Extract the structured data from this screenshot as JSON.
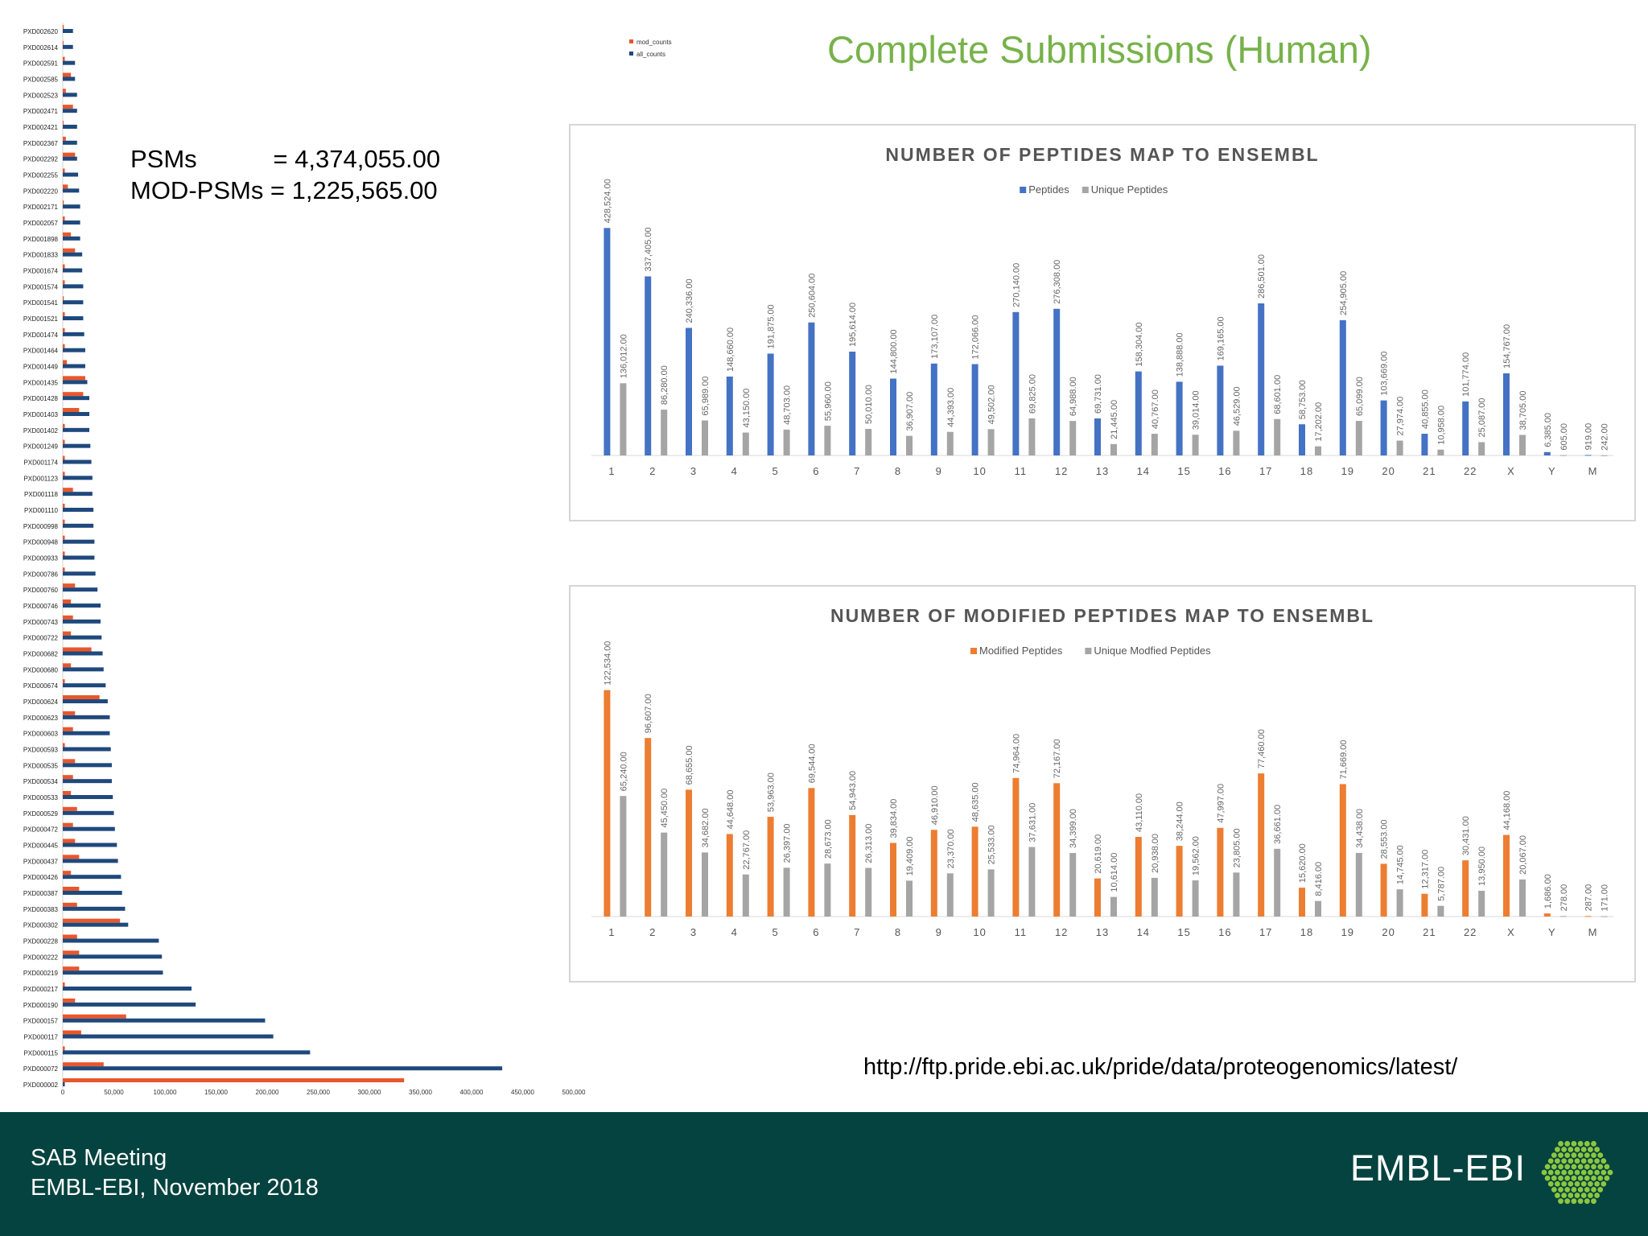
{
  "slide": {
    "title": "Complete Submissions (Human)",
    "url": "http://ftp.pride.ebi.ac.uk/pride/data/proteogenomics/latest/"
  },
  "stats": {
    "psms": "PSMs           = 4,374,055.00",
    "mod_psms": "MOD-PSMs = 1,225,565.00"
  },
  "footer": {
    "line1": "SAB Meeting",
    "line2": "EMBL-EBI, November 2018",
    "logo": "EMBL-EBI"
  },
  "hbar": {
    "legend": [
      "mod_counts",
      "all_counts"
    ]
  },
  "colors": {
    "title_green": "#77b24a",
    "footer_bg": "#04433f",
    "blue": "#4472c4",
    "gray": "#a5a5a5",
    "orange": "#ed7d31",
    "navy": "#1f497d",
    "red": "#e8572c",
    "logo_green": "#8dc63f"
  },
  "chart_data": [
    {
      "type": "bar",
      "orientation": "horizontal",
      "categories": [
        "PXD002620",
        "PXD002614",
        "PXD002591",
        "PXD002585",
        "PXD002523",
        "PXD002471",
        "PXD002421",
        "PXD002367",
        "PXD002292",
        "PXD002255",
        "PXD002220",
        "PXD002171",
        "PXD002057",
        "PXD001898",
        "PXD001833",
        "PXD001674",
        "PXD001574",
        "PXD001541",
        "PXD001521",
        "PXD001474",
        "PXD001464",
        "PXD001449",
        "PXD001435",
        "PXD001428",
        "PXD001403",
        "PXD001402",
        "PXD001249",
        "PXD001174",
        "PXD001123",
        "PXD001118",
        "PXD001110",
        "PXD000998",
        "PXD000948",
        "PXD000933",
        "PXD000786",
        "PXD000760",
        "PXD000746",
        "PXD000743",
        "PXD000722",
        "PXD000682",
        "PXD000680",
        "PXD000674",
        "PXD000624",
        "PXD000623",
        "PXD000603",
        "PXD000593",
        "PXD000535",
        "PXD000534",
        "PXD000533",
        "PXD000529",
        "PXD000472",
        "PXD000445",
        "PXD000437",
        "PXD000426",
        "PXD000387",
        "PXD000383",
        "PXD000302",
        "PXD000228",
        "PXD000222",
        "PXD000219",
        "PXD000217",
        "PXD000190",
        "PXD000157",
        "PXD000117",
        "PXD000115",
        "PXD000072",
        "PXD000002"
      ],
      "series": [
        {
          "name": "mod_counts",
          "values": [
            1000,
            500,
            2000,
            8000,
            3000,
            10000,
            500,
            3000,
            12000,
            2000,
            5000,
            1000,
            2000,
            8000,
            12000,
            2000,
            2000,
            1000,
            2000,
            2000,
            2000,
            4000,
            22000,
            20000,
            16000,
            2000,
            2000,
            2000,
            2000,
            10000,
            2000,
            2000,
            2000,
            2000,
            2000,
            12000,
            8000,
            10000,
            8000,
            28000,
            8000,
            2000,
            36000,
            12000,
            10000,
            2000,
            12000,
            10000,
            8000,
            14000,
            10000,
            12000,
            16000,
            8000,
            16000,
            14000,
            56000,
            14000,
            16000,
            16000,
            2000,
            12000,
            62000,
            18000,
            2000,
            40000,
            334000
          ]
        },
        {
          "name": "all_counts",
          "values": [
            10000,
            10000,
            12000,
            12000,
            14000,
            14000,
            14000,
            14000,
            14000,
            15000,
            16000,
            17000,
            17000,
            17000,
            19000,
            19000,
            20000,
            20000,
            20000,
            21000,
            22000,
            22000,
            24000,
            26000,
            26000,
            26000,
            27000,
            28000,
            29000,
            29000,
            30000,
            30000,
            31000,
            31000,
            32000,
            34000,
            37000,
            37000,
            38000,
            39000,
            40000,
            42000,
            44000,
            46000,
            46000,
            47000,
            48000,
            48000,
            49000,
            50000,
            51000,
            53000,
            54000,
            57000,
            58000,
            61000,
            64000,
            94000,
            97000,
            98000,
            126000,
            130000,
            198000,
            206000,
            242000,
            430000,
            2000
          ]
        }
      ],
      "xlim": [
        0,
        500000
      ],
      "xticks": [
        "0",
        "50,000",
        "100,000",
        "150,000",
        "200,000",
        "250,000",
        "300,000",
        "350,000",
        "400,000",
        "450,000",
        "500,000"
      ],
      "legend": "top-right"
    },
    {
      "type": "bar",
      "title": "NUMBER OF PEPTIDES MAP TO ENSEMBL",
      "categories": [
        "1",
        "2",
        "3",
        "4",
        "5",
        "6",
        "7",
        "8",
        "9",
        "10",
        "11",
        "12",
        "13",
        "14",
        "15",
        "16",
        "17",
        "18",
        "19",
        "20",
        "21",
        "22",
        "X",
        "Y",
        "M"
      ],
      "series": [
        {
          "name": "Peptides",
          "values": [
            428524,
            337405,
            240336,
            148660,
            191875,
            250604,
            195614,
            144800,
            173107,
            172066,
            270140,
            276308,
            69731,
            158304,
            138888,
            169165,
            286501,
            58753,
            254905,
            103669,
            40855,
            101774,
            154767,
            6385,
            919
          ],
          "labels": [
            "428,524.00",
            "337,405.00",
            "240,336.00",
            "148,660.00",
            "191,875.00",
            "250,604.00",
            "195,614.00",
            "144,800.00",
            "173,107.00",
            "172,066.00",
            "270,140.00",
            "276,308.00",
            "69,731.00",
            "158,304.00",
            "138,888.00",
            "169,165.00",
            "286,501.00",
            "58,753.00",
            "254,905.00",
            "103,669.00",
            "40,855.00",
            "101,774.00",
            "154,767.00",
            "6,385.00",
            "919.00"
          ]
        },
        {
          "name": "Unique Peptides",
          "values": [
            136012,
            86280,
            65989,
            43150,
            48703,
            55960,
            50010,
            36907,
            44393,
            49502,
            69825,
            64988,
            21445,
            40767,
            39014,
            46529,
            68601,
            17202,
            65099,
            27974,
            10958,
            25087,
            38705,
            605,
            242
          ],
          "labels": [
            "136,012.00",
            "86,280.00",
            "65,989.00",
            "43,150.00",
            "48,703.00",
            "55,960.00",
            "50,010.00",
            "36,907.00",
            "44,393.00",
            "49,502.00",
            "69,825.00",
            "64,988.00",
            "21,445.00",
            "40,767.00",
            "39,014.00",
            "46,529.00",
            "68,601.00",
            "17,202.00",
            "65,099.00",
            "27,974.00",
            "10,958.00",
            "25,087.00",
            "38,705.00",
            "605.00",
            "242.00"
          ]
        }
      ],
      "ylim": [
        0,
        470000
      ],
      "legend": "top-center",
      "grid": false
    },
    {
      "type": "bar",
      "title": "NUMBER OF MODIFIED PEPTIDES MAP TO ENSEMBL",
      "categories": [
        "1",
        "2",
        "3",
        "4",
        "5",
        "6",
        "7",
        "8",
        "9",
        "10",
        "11",
        "12",
        "13",
        "14",
        "15",
        "16",
        "17",
        "18",
        "19",
        "20",
        "21",
        "22",
        "X",
        "Y",
        "M"
      ],
      "series": [
        {
          "name": "Modified Peptides",
          "values": [
            122534,
            96607,
            68655,
            44648,
            53963,
            69544,
            54943,
            39834,
            46910,
            48635,
            74964,
            72167,
            20619,
            43110,
            38244,
            47997,
            77460,
            15620,
            71669,
            28553,
            12317,
            30431,
            44168,
            1686,
            287
          ],
          "labels": [
            "122,534.00",
            "96,607.00",
            "68,655.00",
            "44,648.00",
            "53,963.00",
            "69,544.00",
            "54,943.00",
            "39,834.00",
            "46,910.00",
            "48,635.00",
            "74,964.00",
            "72,167.00",
            "20,619.00",
            "43,110.00",
            "38,244.00",
            "47,997.00",
            "77,460.00",
            "15,620.00",
            "71,669.00",
            "28,553.00",
            "12,317.00",
            "30,431.00",
            "44,168.00",
            "1,686.00",
            "287.00"
          ]
        },
        {
          "name": "Unique Modfied Peptides",
          "values": [
            65240,
            45450,
            34682,
            22767,
            26397,
            28673,
            26313,
            19409,
            23370,
            25533,
            37631,
            34399,
            10614,
            20938,
            19562,
            23805,
            36661,
            8416,
            34438,
            14745,
            5787,
            13950,
            20067,
            278,
            171
          ],
          "labels": [
            "65,240.00",
            "45,450.00",
            "34,682.00",
            "22,767.00",
            "26,397.00",
            "28,673.00",
            "26,313.00",
            "19,409.00",
            "23,370.00",
            "25,533.00",
            "37,631.00",
            "34,399.00",
            "10,614.00",
            "20,938.00",
            "19,562.00",
            "23,805.00",
            "36,661.00",
            "8,416.00",
            "34,438.00",
            "14,745.00",
            "5,787.00",
            "13,950.00",
            "20,067.00",
            "278.00",
            "171.00"
          ]
        }
      ],
      "ylim": [
        0,
        135000
      ],
      "legend": "top-center",
      "grid": false
    }
  ]
}
